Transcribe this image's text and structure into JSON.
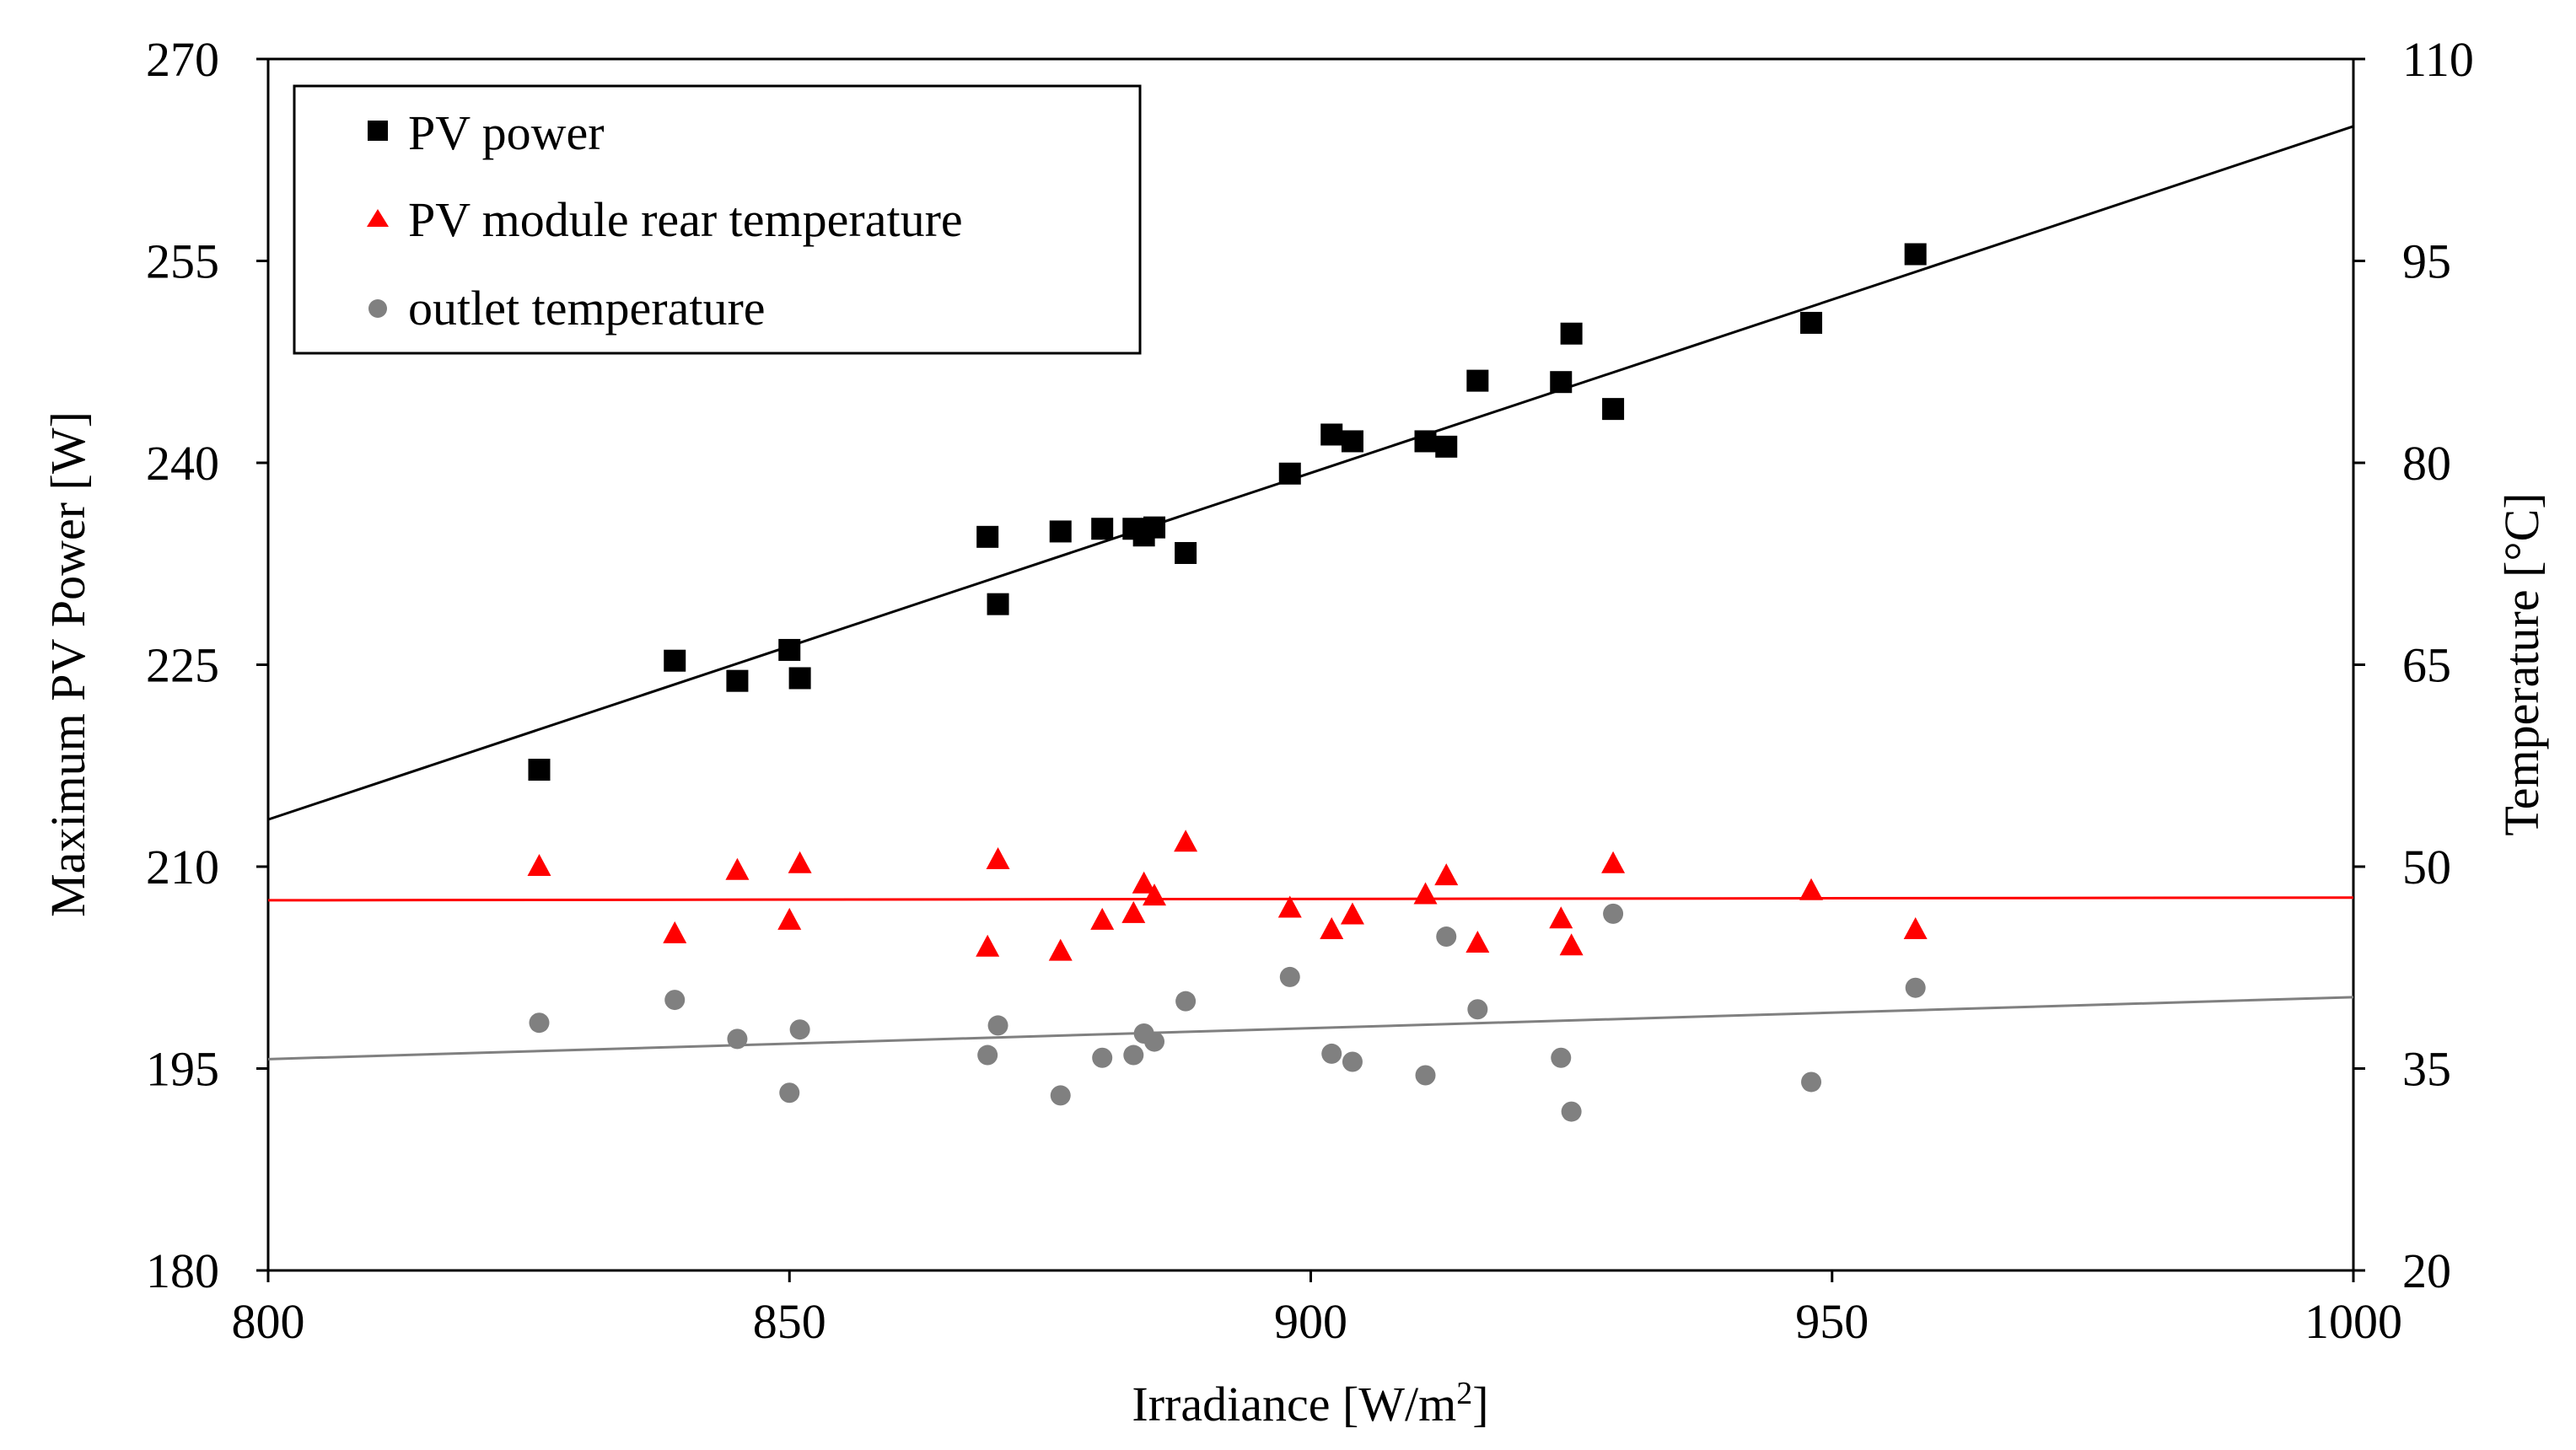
{
  "chart_data": {
    "type": "scatter",
    "title": "",
    "xlabel": "Irradiance [W/m",
    "xlabel_sup": "2",
    "xlabel_end": "]",
    "ylabel": "Maximum PV Power [W]",
    "y2label": "Temperature [°C]",
    "xlim": [
      800,
      1000
    ],
    "ylim": [
      180,
      270
    ],
    "y2lim": [
      20,
      110
    ],
    "x_ticks": [
      "800",
      "850",
      "900",
      "950",
      "1000"
    ],
    "y_ticks": [
      "180",
      "195",
      "210",
      "225",
      "240",
      "255",
      "270"
    ],
    "y2_ticks": [
      "20",
      "35",
      "50",
      "65",
      "80",
      "95",
      "110"
    ],
    "grid": false,
    "legend_position": "top-left",
    "series": [
      {
        "name": "PV power",
        "axis": "left",
        "marker": "square",
        "color": "#000000",
        "x": [
          826,
          839,
          845,
          850,
          851,
          869,
          870,
          876,
          880,
          883,
          884,
          885,
          888,
          898,
          902,
          904,
          911,
          913,
          916,
          924,
          925,
          929,
          948,
          958
        ],
        "y": [
          217.2,
          225.3,
          223.8,
          226.1,
          224.0,
          234.5,
          229.5,
          234.9,
          235.1,
          235.1,
          234.6,
          235.2,
          233.3,
          239.2,
          242.1,
          241.6,
          241.6,
          241.2,
          246.1,
          246.0,
          249.6,
          244.0,
          250.4,
          255.5
        ],
        "trendline": {
          "x": [
            800,
            1000
          ],
          "y": [
            213.5,
            265.0
          ],
          "color": "#000000"
        }
      },
      {
        "name": "PV module rear temperature",
        "axis": "right",
        "marker": "triangle",
        "color": "#ff0000",
        "x": [
          826,
          839,
          845,
          850,
          851,
          869,
          870,
          876,
          880,
          883,
          884,
          885,
          888,
          898,
          902,
          904,
          911,
          913,
          916,
          924,
          925,
          929,
          948,
          958
        ],
        "y": [
          50.0,
          45.0,
          49.7,
          46.0,
          50.2,
          44.0,
          50.5,
          43.7,
          46.0,
          46.5,
          48.7,
          47.8,
          51.8,
          46.9,
          45.3,
          46.4,
          47.9,
          49.3,
          44.3,
          46.1,
          44.1,
          50.2,
          48.2,
          45.3
        ],
        "trendline": {
          "x": [
            800,
            1000
          ],
          "y": [
            47.5,
            47.7
          ],
          "color": "#ff0000"
        }
      },
      {
        "name": "outlet temperature",
        "axis": "right",
        "marker": "circle",
        "color": "#808080",
        "x": [
          826,
          839,
          845,
          850,
          851,
          869,
          870,
          876,
          880,
          883,
          884,
          885,
          888,
          898,
          902,
          904,
          911,
          913,
          916,
          924,
          925,
          929,
          948,
          958
        ],
        "y": [
          38.4,
          40.1,
          37.2,
          33.2,
          37.9,
          36.0,
          38.2,
          33.0,
          35.8,
          36.0,
          37.6,
          37.0,
          40.0,
          41.8,
          36.1,
          35.5,
          34.5,
          44.8,
          39.4,
          35.8,
          31.8,
          46.5,
          34.0,
          41.0
        ],
        "trendline": {
          "x": [
            800,
            1000
          ],
          "y": [
            35.7,
            40.3
          ],
          "color": "#808080"
        }
      }
    ]
  }
}
